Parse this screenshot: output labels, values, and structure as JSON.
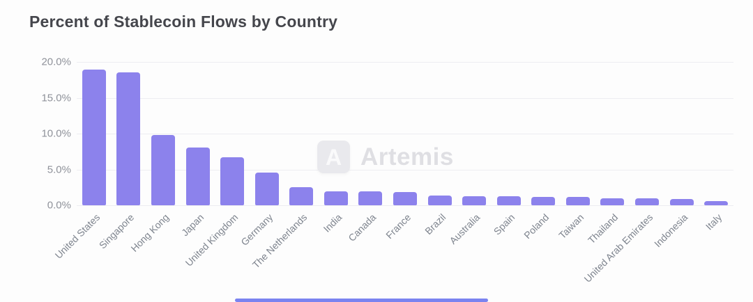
{
  "title": "Percent of Stablecoin Flows by Country",
  "watermark": {
    "logo_letter": "A",
    "text": "Artemis"
  },
  "colors": {
    "bar": "#8c82ec",
    "gridline": "#ededf1",
    "title_text": "#45464c",
    "axis_text": "#7e848e",
    "watermark_text": "#dfdfe3",
    "scrollbar": "#7b83f0"
  },
  "chart_data": {
    "type": "bar",
    "title": "Percent of Stablecoin Flows by Country",
    "xlabel": "",
    "ylabel": "",
    "ylim": [
      0,
      20
    ],
    "grid": true,
    "legend": "none",
    "y_tick_labels": [
      "20.0%",
      "15.0%",
      "10.0%",
      "5.0%",
      "0.0%"
    ],
    "y_tick_values": [
      20,
      15,
      10,
      5,
      0
    ],
    "categories": [
      "United States",
      "Singapore",
      "Hong Kong",
      "Japan",
      "United Kingdom",
      "Germany",
      "The Netherlands",
      "India",
      "Canada",
      "France",
      "Brazil",
      "Australia",
      "Spain",
      "Poland",
      "Taiwan",
      "Thailand",
      "United Arab Emirates",
      "Indonesia",
      "Italy"
    ],
    "values": [
      18.9,
      18.5,
      9.8,
      8.1,
      6.7,
      4.6,
      2.5,
      1.9,
      1.9,
      1.8,
      1.4,
      1.3,
      1.25,
      1.2,
      1.2,
      1.0,
      0.95,
      0.85,
      0.6
    ],
    "value_unit": "%"
  }
}
